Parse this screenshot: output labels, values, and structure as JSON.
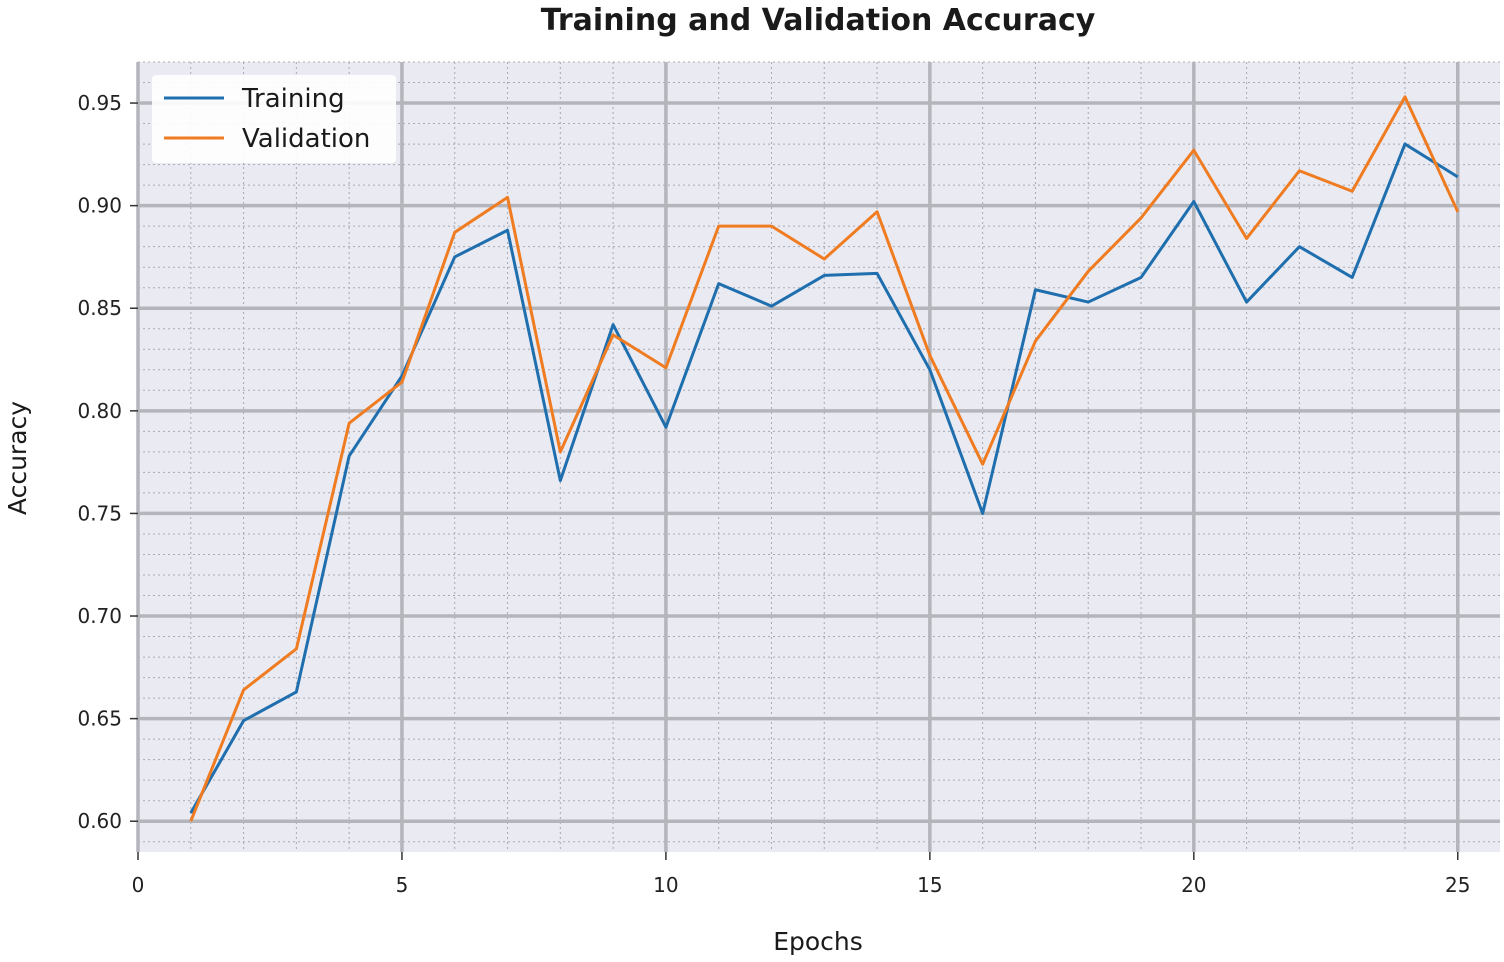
{
  "chart_data": {
    "type": "line",
    "title": "Training and Validation Accuracy",
    "xlabel": "Epochs",
    "ylabel": "Accuracy",
    "xlim": [
      0,
      25.8
    ],
    "ylim": [
      0.585,
      0.97
    ],
    "xticks": [
      0,
      5,
      10,
      15,
      20,
      25
    ],
    "yticks": [
      0.6,
      0.65,
      0.7,
      0.75,
      0.8,
      0.85,
      0.9,
      0.95
    ],
    "grid": true,
    "legend_position": "top-left",
    "x": [
      1,
      2,
      3,
      4,
      5,
      6,
      7,
      8,
      9,
      10,
      11,
      12,
      13,
      14,
      15,
      16,
      17,
      18,
      19,
      20,
      21,
      22,
      23,
      24,
      25
    ],
    "series": [
      {
        "name": "Training",
        "color": "#1f6fae",
        "values": [
          0.604,
          0.649,
          0.663,
          0.778,
          0.817,
          0.875,
          0.888,
          0.766,
          0.842,
          0.792,
          0.862,
          0.851,
          0.866,
          0.867,
          0.82,
          0.75,
          0.859,
          0.853,
          0.865,
          0.902,
          0.853,
          0.88,
          0.865,
          0.93,
          0.914
        ]
      },
      {
        "name": "Validation",
        "color": "#f07c22",
        "values": [
          0.6,
          0.664,
          0.684,
          0.794,
          0.814,
          0.887,
          0.904,
          0.78,
          0.837,
          0.821,
          0.89,
          0.89,
          0.874,
          0.897,
          0.827,
          0.774,
          0.834,
          0.868,
          0.894,
          0.927,
          0.884,
          0.917,
          0.907,
          0.953,
          0.897
        ]
      }
    ]
  }
}
